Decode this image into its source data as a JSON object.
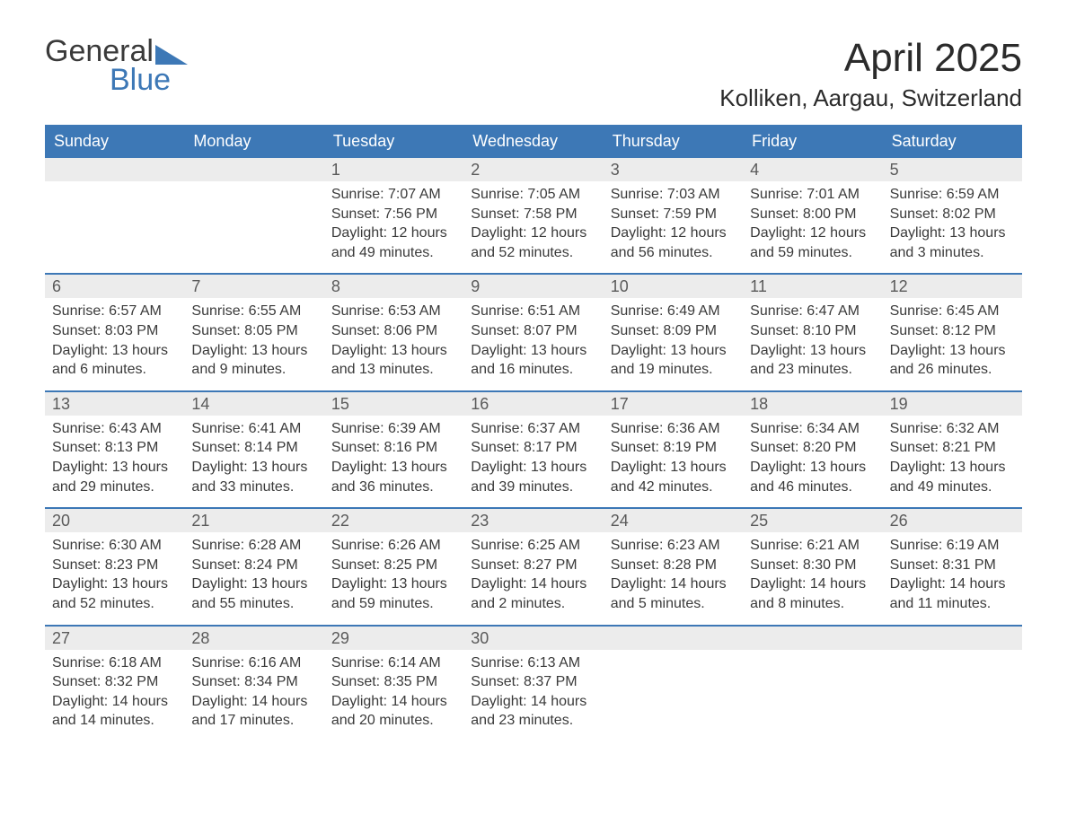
{
  "brand": {
    "part1": "General",
    "part2": "Blue"
  },
  "title": "April 2025",
  "location": "Kolliken, Aargau, Switzerland",
  "colors": {
    "accent": "#3d78b6",
    "header_bg": "#3d78b6",
    "daynum_bg": "#ececec",
    "text": "#3a3a3a"
  },
  "day_labels": [
    "Sunday",
    "Monday",
    "Tuesday",
    "Wednesday",
    "Thursday",
    "Friday",
    "Saturday"
  ],
  "weeks": [
    [
      {
        "n": "",
        "sr": "",
        "ss": "",
        "dl": ""
      },
      {
        "n": "",
        "sr": "",
        "ss": "",
        "dl": ""
      },
      {
        "n": "1",
        "sr": "Sunrise: 7:07 AM",
        "ss": "Sunset: 7:56 PM",
        "dl": "Daylight: 12 hours and 49 minutes."
      },
      {
        "n": "2",
        "sr": "Sunrise: 7:05 AM",
        "ss": "Sunset: 7:58 PM",
        "dl": "Daylight: 12 hours and 52 minutes."
      },
      {
        "n": "3",
        "sr": "Sunrise: 7:03 AM",
        "ss": "Sunset: 7:59 PM",
        "dl": "Daylight: 12 hours and 56 minutes."
      },
      {
        "n": "4",
        "sr": "Sunrise: 7:01 AM",
        "ss": "Sunset: 8:00 PM",
        "dl": "Daylight: 12 hours and 59 minutes."
      },
      {
        "n": "5",
        "sr": "Sunrise: 6:59 AM",
        "ss": "Sunset: 8:02 PM",
        "dl": "Daylight: 13 hours and 3 minutes."
      }
    ],
    [
      {
        "n": "6",
        "sr": "Sunrise: 6:57 AM",
        "ss": "Sunset: 8:03 PM",
        "dl": "Daylight: 13 hours and 6 minutes."
      },
      {
        "n": "7",
        "sr": "Sunrise: 6:55 AM",
        "ss": "Sunset: 8:05 PM",
        "dl": "Daylight: 13 hours and 9 minutes."
      },
      {
        "n": "8",
        "sr": "Sunrise: 6:53 AM",
        "ss": "Sunset: 8:06 PM",
        "dl": "Daylight: 13 hours and 13 minutes."
      },
      {
        "n": "9",
        "sr": "Sunrise: 6:51 AM",
        "ss": "Sunset: 8:07 PM",
        "dl": "Daylight: 13 hours and 16 minutes."
      },
      {
        "n": "10",
        "sr": "Sunrise: 6:49 AM",
        "ss": "Sunset: 8:09 PM",
        "dl": "Daylight: 13 hours and 19 minutes."
      },
      {
        "n": "11",
        "sr": "Sunrise: 6:47 AM",
        "ss": "Sunset: 8:10 PM",
        "dl": "Daylight: 13 hours and 23 minutes."
      },
      {
        "n": "12",
        "sr": "Sunrise: 6:45 AM",
        "ss": "Sunset: 8:12 PM",
        "dl": "Daylight: 13 hours and 26 minutes."
      }
    ],
    [
      {
        "n": "13",
        "sr": "Sunrise: 6:43 AM",
        "ss": "Sunset: 8:13 PM",
        "dl": "Daylight: 13 hours and 29 minutes."
      },
      {
        "n": "14",
        "sr": "Sunrise: 6:41 AM",
        "ss": "Sunset: 8:14 PM",
        "dl": "Daylight: 13 hours and 33 minutes."
      },
      {
        "n": "15",
        "sr": "Sunrise: 6:39 AM",
        "ss": "Sunset: 8:16 PM",
        "dl": "Daylight: 13 hours and 36 minutes."
      },
      {
        "n": "16",
        "sr": "Sunrise: 6:37 AM",
        "ss": "Sunset: 8:17 PM",
        "dl": "Daylight: 13 hours and 39 minutes."
      },
      {
        "n": "17",
        "sr": "Sunrise: 6:36 AM",
        "ss": "Sunset: 8:19 PM",
        "dl": "Daylight: 13 hours and 42 minutes."
      },
      {
        "n": "18",
        "sr": "Sunrise: 6:34 AM",
        "ss": "Sunset: 8:20 PM",
        "dl": "Daylight: 13 hours and 46 minutes."
      },
      {
        "n": "19",
        "sr": "Sunrise: 6:32 AM",
        "ss": "Sunset: 8:21 PM",
        "dl": "Daylight: 13 hours and 49 minutes."
      }
    ],
    [
      {
        "n": "20",
        "sr": "Sunrise: 6:30 AM",
        "ss": "Sunset: 8:23 PM",
        "dl": "Daylight: 13 hours and 52 minutes."
      },
      {
        "n": "21",
        "sr": "Sunrise: 6:28 AM",
        "ss": "Sunset: 8:24 PM",
        "dl": "Daylight: 13 hours and 55 minutes."
      },
      {
        "n": "22",
        "sr": "Sunrise: 6:26 AM",
        "ss": "Sunset: 8:25 PM",
        "dl": "Daylight: 13 hours and 59 minutes."
      },
      {
        "n": "23",
        "sr": "Sunrise: 6:25 AM",
        "ss": "Sunset: 8:27 PM",
        "dl": "Daylight: 14 hours and 2 minutes."
      },
      {
        "n": "24",
        "sr": "Sunrise: 6:23 AM",
        "ss": "Sunset: 8:28 PM",
        "dl": "Daylight: 14 hours and 5 minutes."
      },
      {
        "n": "25",
        "sr": "Sunrise: 6:21 AM",
        "ss": "Sunset: 8:30 PM",
        "dl": "Daylight: 14 hours and 8 minutes."
      },
      {
        "n": "26",
        "sr": "Sunrise: 6:19 AM",
        "ss": "Sunset: 8:31 PM",
        "dl": "Daylight: 14 hours and 11 minutes."
      }
    ],
    [
      {
        "n": "27",
        "sr": "Sunrise: 6:18 AM",
        "ss": "Sunset: 8:32 PM",
        "dl": "Daylight: 14 hours and 14 minutes."
      },
      {
        "n": "28",
        "sr": "Sunrise: 6:16 AM",
        "ss": "Sunset: 8:34 PM",
        "dl": "Daylight: 14 hours and 17 minutes."
      },
      {
        "n": "29",
        "sr": "Sunrise: 6:14 AM",
        "ss": "Sunset: 8:35 PM",
        "dl": "Daylight: 14 hours and 20 minutes."
      },
      {
        "n": "30",
        "sr": "Sunrise: 6:13 AM",
        "ss": "Sunset: 8:37 PM",
        "dl": "Daylight: 14 hours and 23 minutes."
      },
      {
        "n": "",
        "sr": "",
        "ss": "",
        "dl": ""
      },
      {
        "n": "",
        "sr": "",
        "ss": "",
        "dl": ""
      },
      {
        "n": "",
        "sr": "",
        "ss": "",
        "dl": ""
      }
    ]
  ]
}
